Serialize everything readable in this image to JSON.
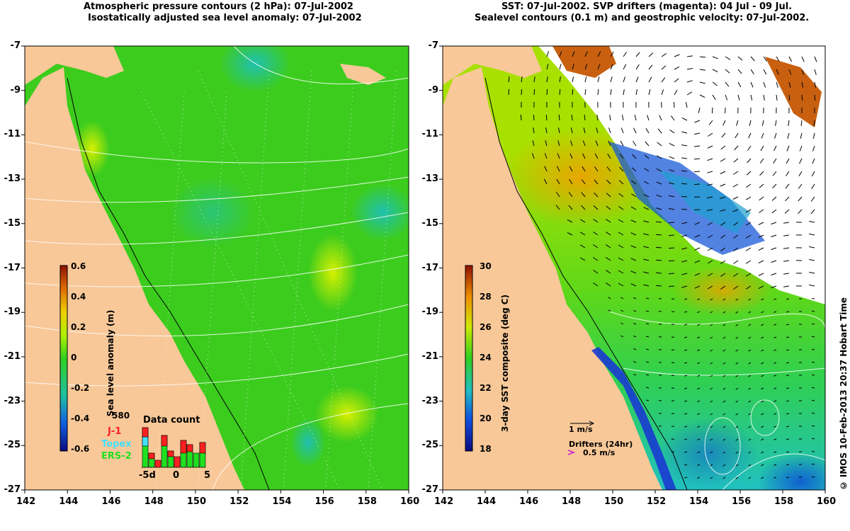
{
  "left_panel": {
    "title_line1": "Atmospheric pressure contours (2 hPa): 07-Jul-2002",
    "title_line2": "Isostatically adjusted sea level anomaly: 07-Jul-2002",
    "x_ticks": [
      "142",
      "144",
      "146",
      "148",
      "150",
      "152",
      "154",
      "156",
      "158",
      "160"
    ],
    "y_ticks": [
      "-7",
      "-9",
      "-11",
      "-13",
      "-15",
      "-17",
      "-19",
      "-21",
      "-23",
      "-25",
      "-27"
    ],
    "colorbar": {
      "label": "Sea level anomaly (m)",
      "ticks": [
        "0.6",
        "0.4",
        "0.2",
        "0",
        "-0.2",
        "-0.4",
        "-0.6"
      ]
    },
    "data_count": {
      "title": "Data count",
      "max_label": "580",
      "legend": [
        {
          "name": "J-1",
          "color": "#ff2020"
        },
        {
          "name": "Topex",
          "color": "#40e0ff"
        },
        {
          "name": "ERS-2",
          "color": "#20e020"
        }
      ],
      "axis_labels": [
        "-5d",
        "0",
        "5"
      ]
    }
  },
  "right_panel": {
    "title_line1": "SST: 07-Jul-2002. SVP drifters (magenta): 04 Jul - 09 Jul.",
    "title_line2": "Sealevel contours (0.1 m) and geostrophic velocity: 07-Jul-2002.",
    "x_ticks": [
      "142",
      "144",
      "146",
      "148",
      "150",
      "152",
      "154",
      "156",
      "158",
      "160"
    ],
    "y_ticks": [
      "-7",
      "-9",
      "-11",
      "-13",
      "-15",
      "-17",
      "-19",
      "-21",
      "-23",
      "-25",
      "-27"
    ],
    "colorbar": {
      "label": "3-day SST composite (deg C)",
      "ticks": [
        "30",
        "28",
        "26",
        "24",
        "22",
        "20",
        "18"
      ]
    },
    "velocity_scale_label": "1 m/s",
    "drifters_label": "Drifters (24hr)",
    "drifters_speed_label": "0.5 m/s"
  },
  "credit": "© IMOS 10-Feb-2013 20:37 Hobart Time",
  "colors": {
    "land": "#f8c898",
    "ocean_green": "#3ccc1e",
    "nodata": "#ffffff"
  }
}
